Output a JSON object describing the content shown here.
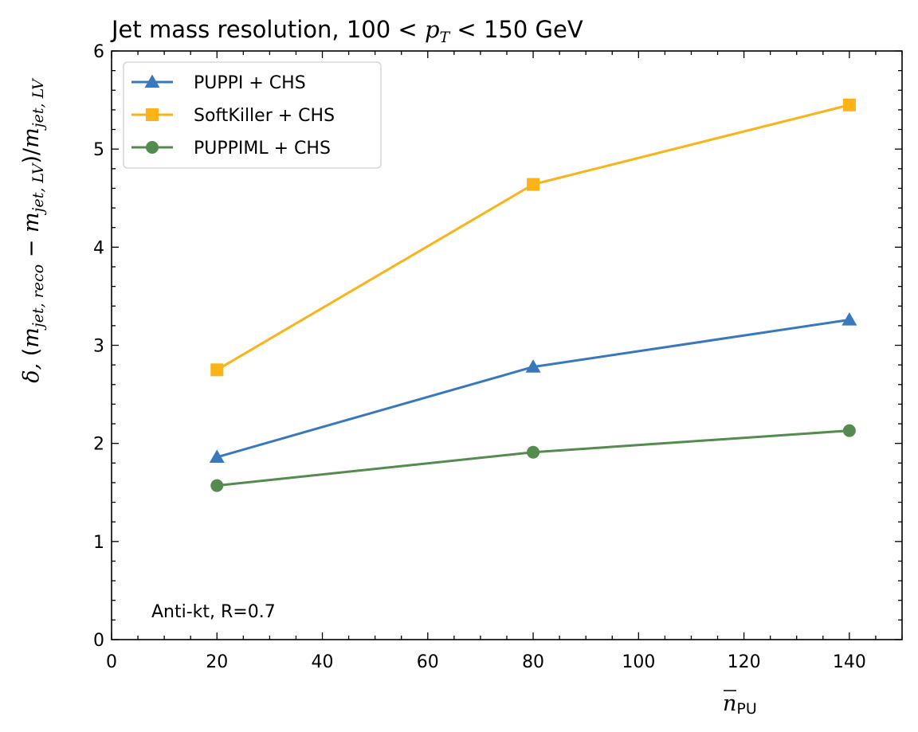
{
  "chart_data": {
    "type": "line",
    "title": {
      "prefix": "Jet mass resolution, 100 < ",
      "var": "p",
      "var_sub": "T",
      "suffix": " < 150 GeV"
    },
    "xlabel": {
      "var": "n",
      "sub": "PU"
    },
    "ylabel": {
      "delta": "δ,",
      "open": "(",
      "m1": "m",
      "m1_sub": "jet, reco",
      "minus": " − ",
      "m2": "m",
      "m2_sub": "jet, LV",
      "close": ")/",
      "m3": "m",
      "m3_sub": "jet, LV"
    },
    "xlim": [
      0,
      150
    ],
    "ylim": [
      0,
      6
    ],
    "xticks": [
      0,
      20,
      40,
      60,
      80,
      100,
      120,
      140
    ],
    "yticks": [
      0,
      1,
      2,
      3,
      4,
      5,
      6
    ],
    "x": [
      20,
      80,
      140
    ],
    "series": [
      {
        "name": "PUPPI + CHS",
        "values": [
          1.86,
          2.78,
          3.26
        ],
        "color": "#3a78be",
        "marker": "triangle"
      },
      {
        "name": "SoftKiller + CHS",
        "values": [
          2.75,
          4.64,
          5.45
        ],
        "color": "#fbb317",
        "marker": "square"
      },
      {
        "name": "PUPPIML + CHS",
        "values": [
          1.57,
          1.91,
          2.13
        ],
        "color": "#558b4e",
        "marker": "circle"
      }
    ],
    "legend": "upper-left",
    "grid": false,
    "annotation": "Anti-kt, R=0.7"
  }
}
